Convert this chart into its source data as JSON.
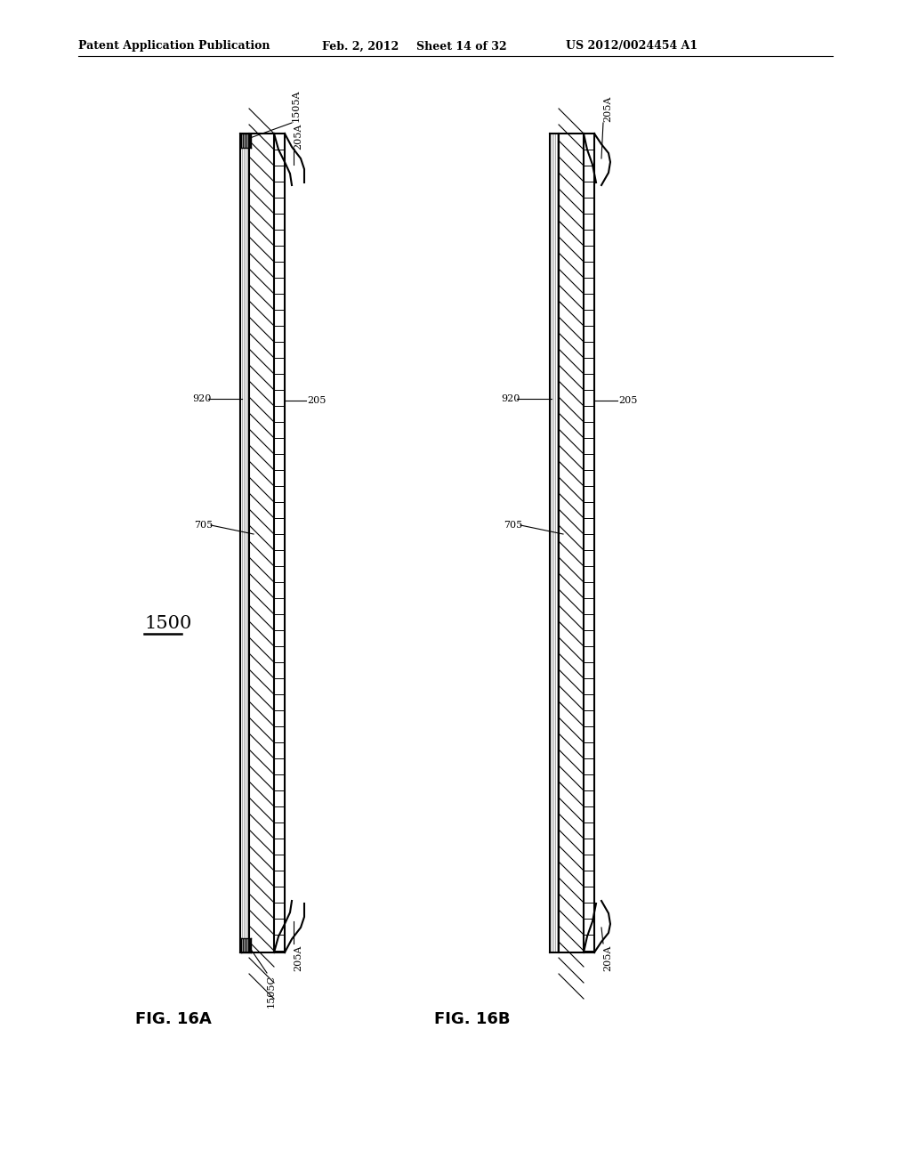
{
  "bg_color": "#ffffff",
  "line_color": "#000000",
  "header_text": "Patent Application Publication",
  "header_date": "Feb. 2, 2012",
  "header_sheet": "Sheet 14 of 32",
  "header_patent": "US 2012/0024454 A1",
  "fig16a_label": "FIG. 16A",
  "fig16b_label": "FIG. 16B",
  "label_1500": "1500",
  "label_1505A": "1505A",
  "label_205A_top_left": "205A",
  "label_920_left": "920",
  "label_205_left": "205",
  "label_705_left": "705",
  "label_205A_bot_left": "205A",
  "label_1505C": "1505C",
  "label_205A_top_right": "205A",
  "label_920_right": "920",
  "label_205_right": "205",
  "label_705_right": "705",
  "label_205A_bot_right": "205A",
  "fig_width": 10.24,
  "fig_height": 13.2,
  "dpi": 100
}
